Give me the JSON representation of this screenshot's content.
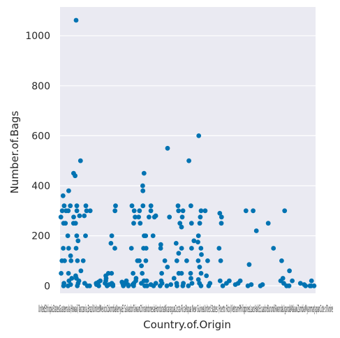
{
  "chart_data": {
    "type": "scatter",
    "style": "strip",
    "xlabel": "Country.of.Origin",
    "ylabel": "Number.of.Bags",
    "ylim": [
      -30,
      1115
    ],
    "yticks": [
      0,
      200,
      400,
      600,
      800,
      1000
    ],
    "grid": true,
    "background_color": "#eaeaf2",
    "point_color": "#0173b2",
    "x_tick_labels_overlapping_text": "UnitedEthiopiaStatesGuatemala(Hawaii)Tanzania,BrazilUnitedMexicoColombiaKenyaEl SalvadorTaiwanChinaIndonesiaHondurasNicaraguaCosta RicaPapua New GuineaUnited States (Puerto Rico)VietnamPhilippinesLaosHaitiEcuadorBurundiRwandaUgandaMalawiZambiaMyanmarJapanCote d?Ivoire",
    "x_tick_labels_visible": [
      "United",
      "Ethiopia",
      "Uganda",
      "Tanzania",
      "Brazil",
      "Mexico",
      "Colombia",
      "Kenya",
      "Ecuador",
      "Zambia",
      "Japan",
      "d?Ivoire"
    ],
    "categories_count": 36,
    "points": [
      {
        "c": 0,
        "y": [
          0,
          10,
          50,
          100,
          150,
          250,
          275,
          300,
          320,
          360,
          300,
          250,
          100
        ]
      },
      {
        "c": 1,
        "y": [
          0,
          5,
          20,
          30,
          50,
          100,
          120,
          150,
          200,
          250,
          275,
          300,
          320,
          450,
          380
        ]
      },
      {
        "c": 2,
        "y": [
          0,
          10,
          20,
          30,
          40,
          60,
          100,
          150,
          180,
          200,
          250,
          280,
          300,
          320,
          440,
          500,
          1062
        ]
      },
      {
        "c": 3,
        "y": [
          0,
          10,
          100,
          200,
          280,
          300,
          320
        ]
      },
      {
        "c": 4,
        "y": [
          0,
          300
        ]
      },
      {
        "c": 5,
        "y": [
          0,
          5,
          10,
          15,
          20
        ]
      },
      {
        "c": 6,
        "y": [
          0,
          5,
          10,
          20,
          30,
          40,
          50
        ]
      },
      {
        "c": 7,
        "y": [
          0,
          5,
          10,
          50,
          150,
          170,
          200,
          300,
          320
        ]
      },
      {
        "c": 8,
        "y": [
          0,
          5,
          10,
          15
        ]
      },
      {
        "c": 9,
        "y": [
          0,
          5,
          10,
          20
        ]
      },
      {
        "c": 10,
        "y": [
          0,
          5,
          10,
          20,
          30,
          50,
          100,
          150,
          250,
          275,
          300,
          320
        ]
      },
      {
        "c": 11,
        "y": [
          0,
          10,
          20,
          50,
          80,
          100,
          150,
          200,
          250,
          275,
          300,
          320,
          380,
          400,
          450
        ]
      },
      {
        "c": 12,
        "y": [
          0,
          5,
          20,
          100,
          150,
          200,
          275,
          300,
          320
        ]
      },
      {
        "c": 13,
        "y": [
          0,
          10,
          200,
          275,
          280
        ]
      },
      {
        "c": 14,
        "y": [
          0,
          10,
          20,
          50,
          100,
          150,
          165
        ]
      },
      {
        "c": 15,
        "y": [
          0,
          5,
          75,
          275,
          550
        ]
      },
      {
        "c": 16,
        "y": [
          0,
          10,
          30,
          50,
          100,
          130,
          170,
          250,
          300,
          320
        ]
      },
      {
        "c": 17,
        "y": [
          0,
          10,
          50,
          100,
          150,
          235,
          275,
          300
        ]
      },
      {
        "c": 18,
        "y": [
          0,
          10,
          30,
          50,
          150,
          180,
          250,
          320,
          500
        ]
      },
      {
        "c": 19,
        "y": [
          0,
          10,
          25,
          50,
          75,
          100,
          125,
          150,
          175,
          200,
          250,
          275,
          300,
          600
        ]
      },
      {
        "c": 20,
        "y": [
          0,
          40,
          100,
          300
        ]
      },
      {
        "c": 21,
        "y": [
          10
        ]
      },
      {
        "c": 22,
        "y": [
          0,
          20,
          100,
          150,
          250,
          275,
          290
        ]
      },
      {
        "c": 23,
        "y": [
          10,
          20
        ]
      },
      {
        "c": 24,
        "y": [
          5
        ]
      },
      {
        "c": 25,
        "y": [
          10,
          20
        ]
      },
      {
        "c": 26,
        "y": [
          0,
          5,
          85,
          300
        ]
      },
      {
        "c": 27,
        "y": [
          220,
          300
        ]
      },
      {
        "c": 28,
        "y": [
          0,
          5
        ]
      },
      {
        "c": 29,
        "y": [
          250
        ]
      },
      {
        "c": 30,
        "y": [
          150
        ]
      },
      {
        "c": 31,
        "y": [
          0,
          10,
          20,
          30,
          100,
          300
        ]
      },
      {
        "c": 32,
        "y": [
          0,
          20,
          60
        ]
      },
      {
        "c": 33,
        "y": [
          10
        ]
      },
      {
        "c": 34,
        "y": [
          0,
          5
        ]
      },
      {
        "c": 35,
        "y": [
          0,
          0,
          0,
          20
        ]
      }
    ]
  }
}
